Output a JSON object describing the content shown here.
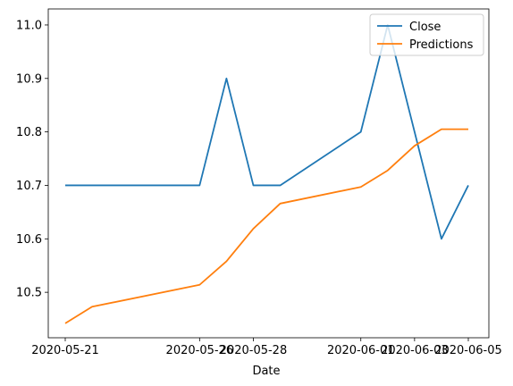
{
  "chart_data": {
    "type": "line",
    "title": "",
    "xlabel": "Date",
    "ylabel": "",
    "x": [
      "2020-05-21",
      "2020-05-22",
      "2020-05-26",
      "2020-05-27",
      "2020-05-28",
      "2020-05-29",
      "2020-06-01",
      "2020-06-02",
      "2020-06-03",
      "2020-06-04",
      "2020-06-05"
    ],
    "x_ticks": [
      "2020-05-21",
      "2020-05-26",
      "2020-05-28",
      "2020-06-01",
      "2020-06-03",
      "2020-06-05"
    ],
    "y_ticks": [
      "10.5",
      "10.6",
      "10.7",
      "10.8",
      "10.9",
      "11.0"
    ],
    "ylim": [
      10.415,
      11.03
    ],
    "grid": false,
    "legend_position": "upper right",
    "series": [
      {
        "name": "Close",
        "color": "#1f77b4",
        "values": [
          10.7,
          10.7,
          10.7,
          10.9,
          10.7,
          10.7,
          10.8,
          11.0,
          10.8,
          10.6,
          10.7
        ]
      },
      {
        "name": "Predictions",
        "color": "#ff7f0e",
        "values": [
          10.442,
          10.473,
          10.514,
          10.558,
          10.619,
          10.666,
          10.697,
          10.728,
          10.774,
          10.805,
          10.805
        ]
      }
    ]
  }
}
